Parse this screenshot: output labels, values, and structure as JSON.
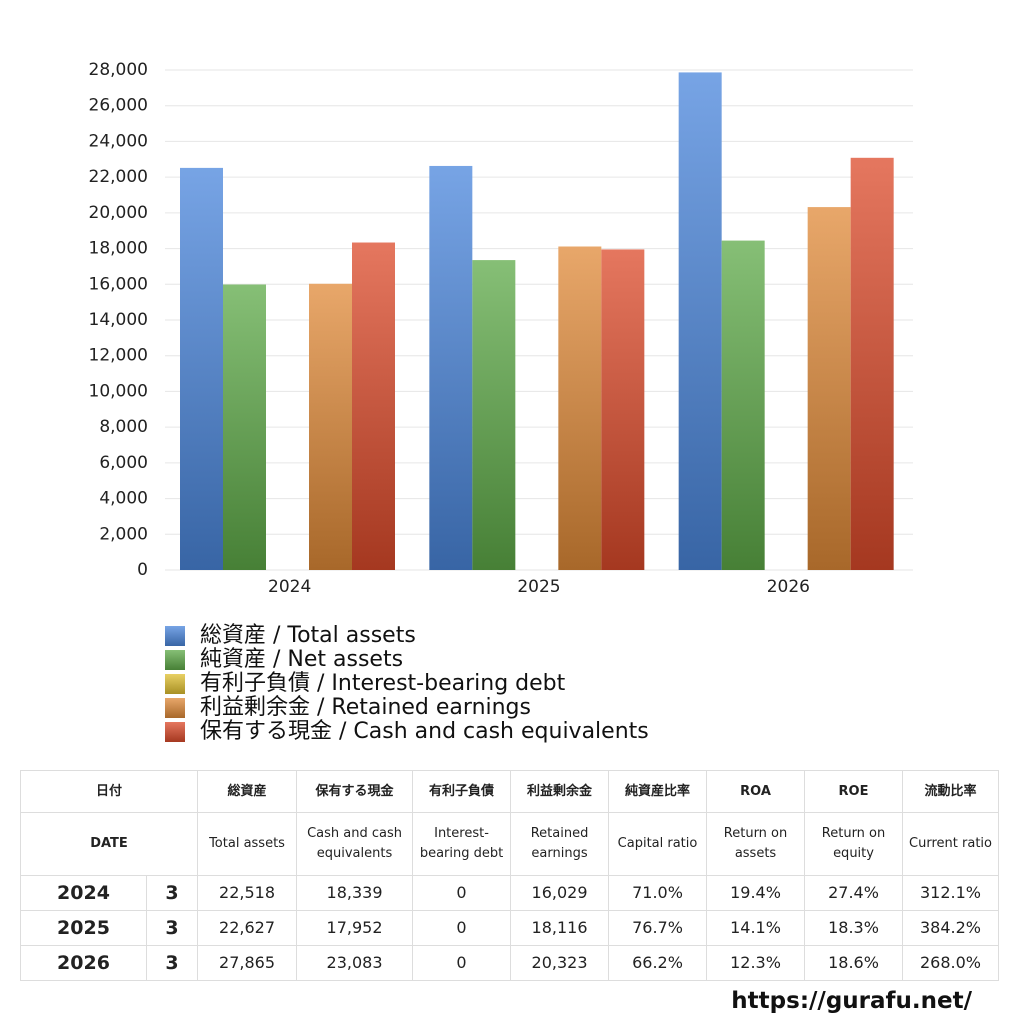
{
  "chart_data": {
    "type": "bar",
    "categories": [
      "2024",
      "2025",
      "2026"
    ],
    "series": [
      {
        "name": "総資産 / Total assets",
        "color": "#4a86dc",
        "values": [
          22518,
          22627,
          27865
        ]
      },
      {
        "name": "純資産 / Net assets",
        "color": "#5eaa48",
        "values": [
          15988,
          17355,
          18447
        ]
      },
      {
        "name": "有利子負債 / Interest-bearing debt",
        "color": "#e0c030",
        "values": [
          0,
          0,
          0
        ]
      },
      {
        "name": "利益剰余金 / Retained earnings",
        "color": "#e08a38",
        "values": [
          16029,
          18116,
          20323
        ]
      },
      {
        "name": "保有する現金 /  Cash and cash equivalents",
        "color": "#dc4a2a",
        "values": [
          18339,
          17952,
          23083
        ]
      }
    ],
    "ylim": [
      0,
      28000
    ],
    "yticks": [
      0,
      {
        "value": 2000,
        "label": "2,000"
      },
      {
        "value": 4000,
        "label": "4,000"
      },
      {
        "value": 6000,
        "label": "6,000"
      },
      {
        "value": 8000,
        "label": "8,000"
      },
      {
        "value": 10000,
        "label": "10,000"
      },
      {
        "value": 12000,
        "label": "12,000"
      },
      {
        "value": 14000,
        "label": "14,000"
      },
      {
        "value": 16000,
        "label": "16,000"
      },
      {
        "value": 18000,
        "label": "18,000"
      },
      {
        "value": 20000,
        "label": "20,000"
      },
      {
        "value": 22000,
        "label": "22,000"
      },
      {
        "value": 24000,
        "label": "24,000"
      },
      {
        "value": 26000,
        "label": "26,000"
      },
      {
        "value": 28000,
        "label": "28,000"
      }
    ],
    "grid": true
  },
  "table": {
    "header1": [
      "日付",
      "総資産",
      "保有する現金",
      "有利子負債",
      "利益剰余金",
      "純資産比率",
      "ROA",
      "ROE",
      "流動比率"
    ],
    "header2": [
      "DATE",
      "Total assets",
      "Cash and cash equivalents",
      "Interest-bearing debt",
      "Retained earnings",
      "Capital ratio",
      "Return on assets",
      "Return on equity",
      "Current ratio"
    ],
    "rows": [
      [
        "2024",
        "3",
        "22,518",
        "18,339",
        "0",
        "16,029",
        "71.0%",
        "19.4%",
        "27.4%",
        "312.1%"
      ],
      [
        "2025",
        "3",
        "22,627",
        "17,952",
        "0",
        "18,116",
        "76.7%",
        "14.1%",
        "18.3%",
        "384.2%"
      ],
      [
        "2026",
        "3",
        "27,865",
        "23,083",
        "0",
        "20,323",
        "66.2%",
        "12.3%",
        "18.6%",
        "268.0%"
      ]
    ]
  },
  "footer": "https://gurafu.net/"
}
